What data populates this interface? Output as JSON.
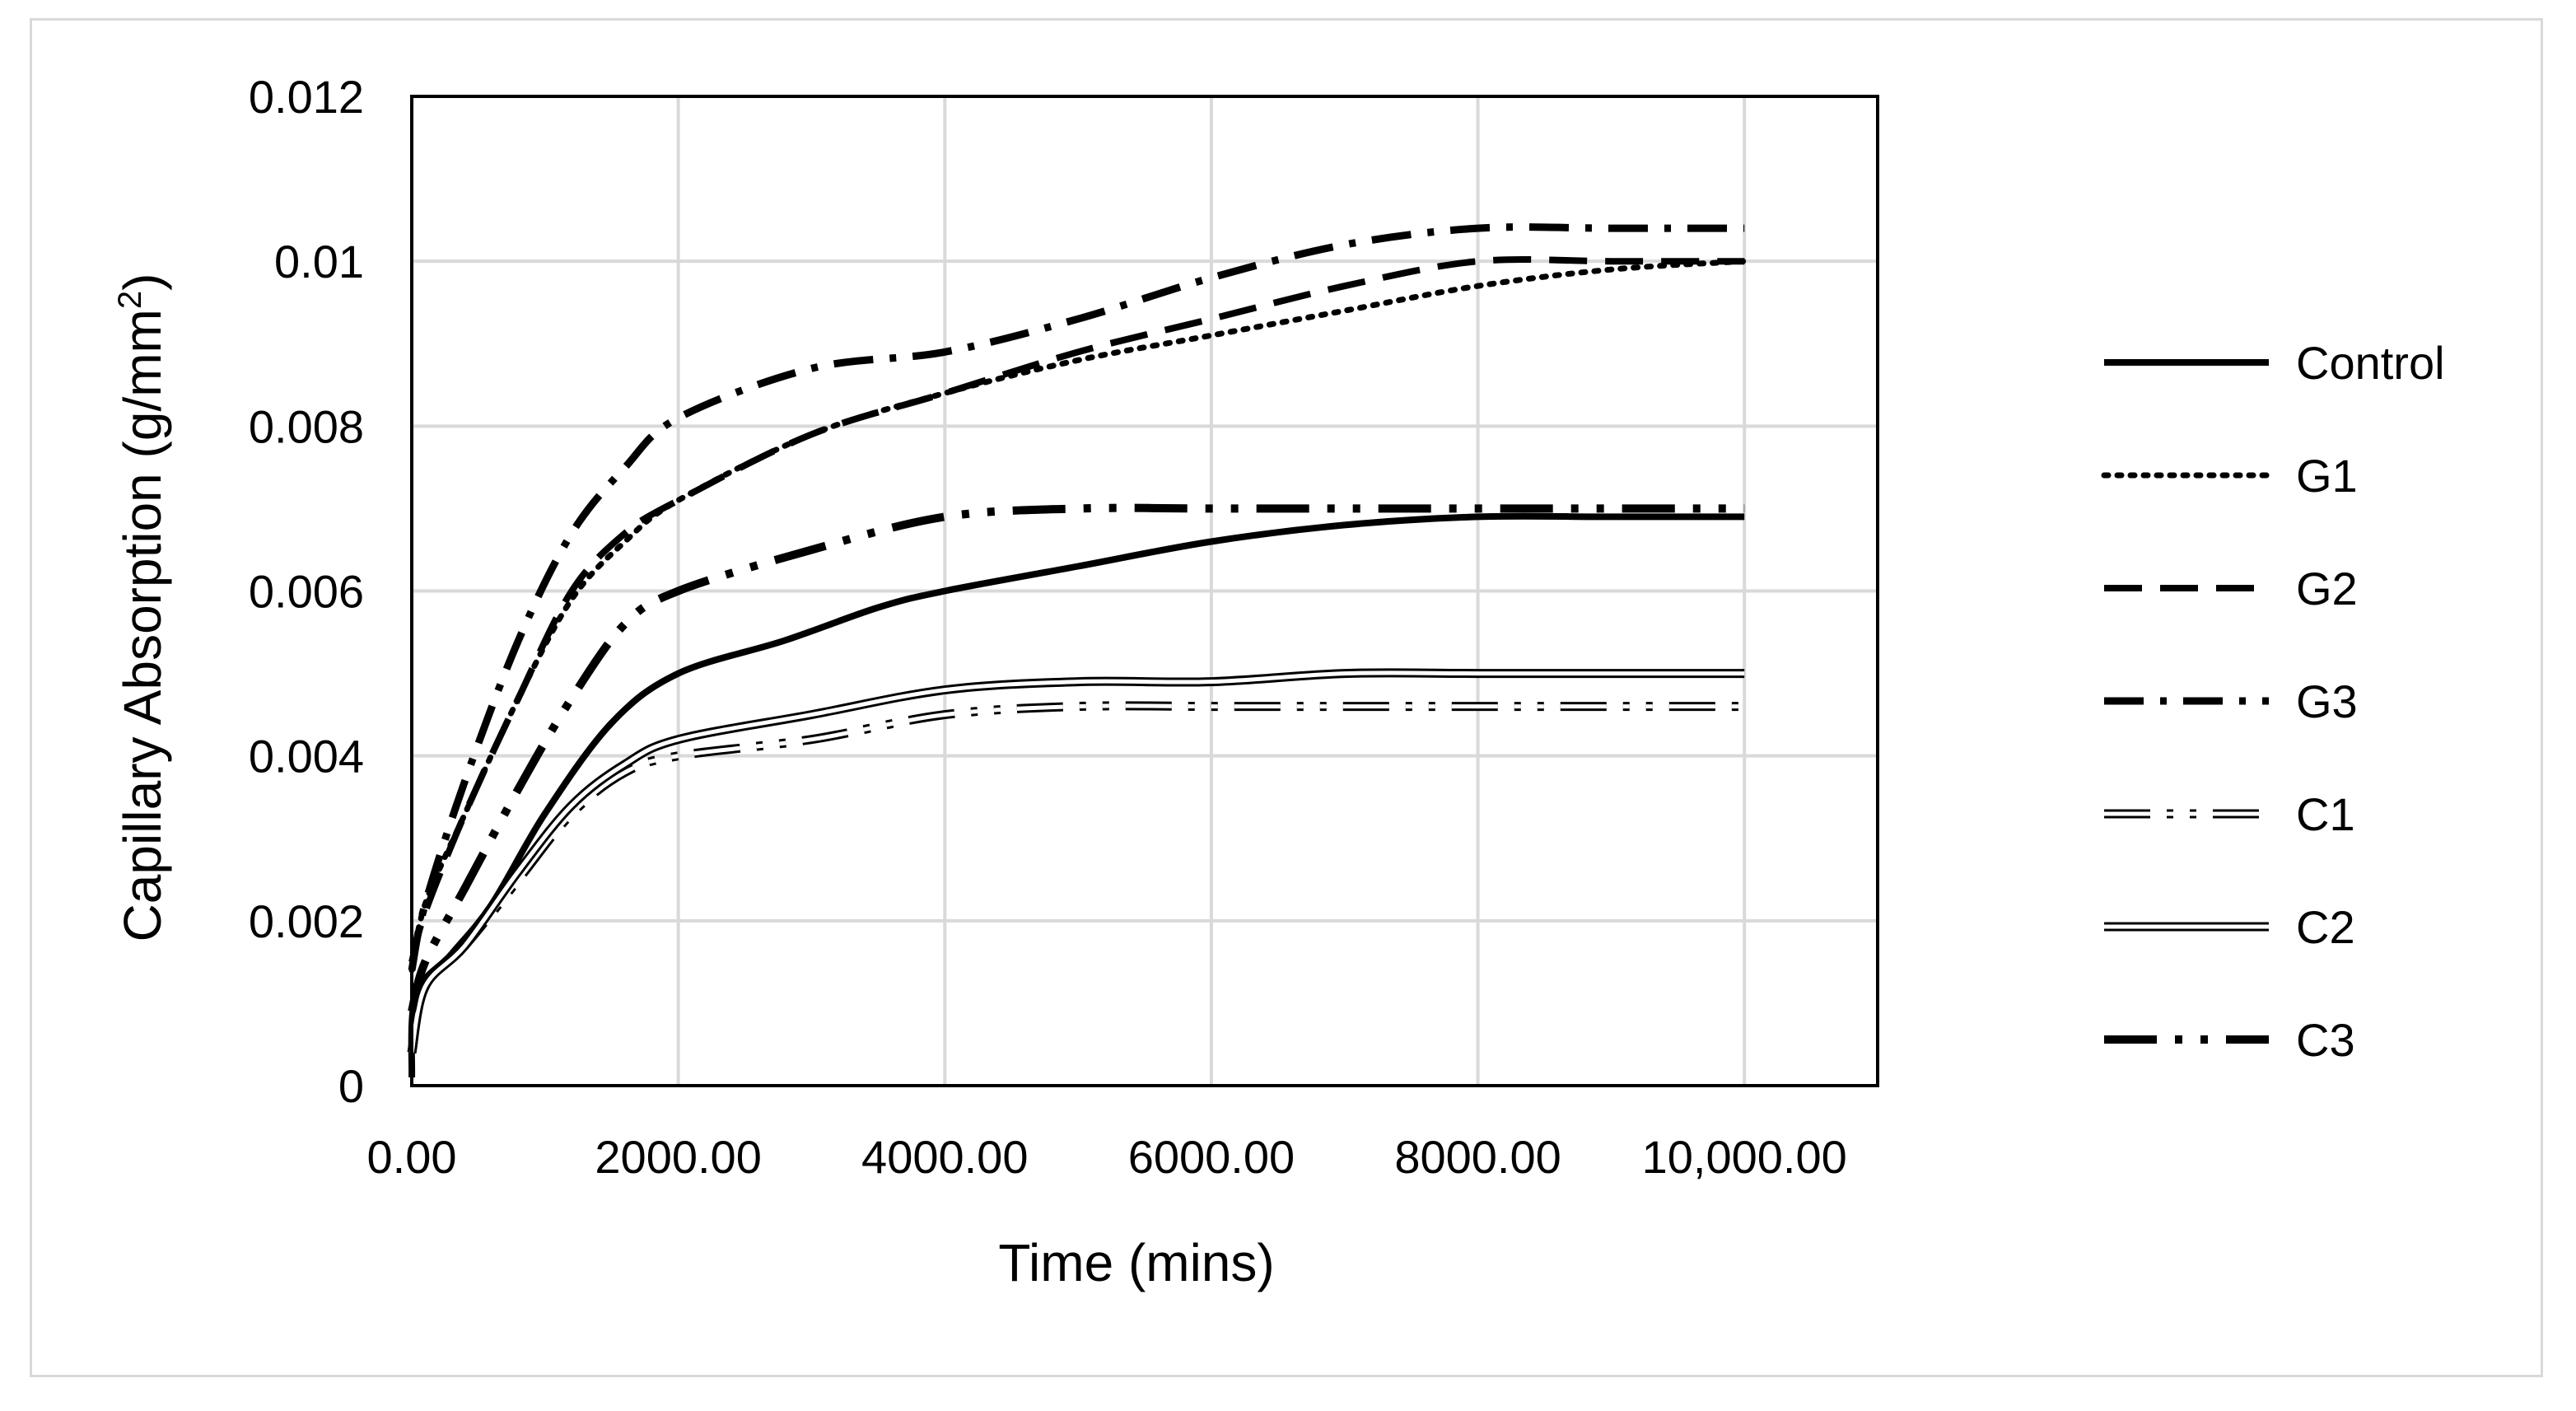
{
  "chart_data": {
    "type": "line",
    "title": "",
    "xlabel": "Time (mins)",
    "ylabel_main": "Capillary Absorption (g/mm",
    "ylabel_sup": "2",
    "ylabel_end": ")",
    "xlim": [
      0,
      11000
    ],
    "ylim": [
      0,
      0.012
    ],
    "x_ticks": [
      0,
      2000,
      4000,
      6000,
      8000,
      10000
    ],
    "x_tick_labels": [
      "0.00",
      "2000.00",
      "4000.00",
      "6000.00",
      "8000.00",
      "10,000.00"
    ],
    "y_ticks": [
      0,
      0.002,
      0.004,
      0.006,
      0.008,
      0.01,
      0.012
    ],
    "y_tick_labels": [
      "0",
      "0.002",
      "0.004",
      "0.006",
      "0.008",
      "0.01",
      "0.012"
    ],
    "grid": true,
    "legend_position": "right",
    "series": [
      {
        "name": "Control",
        "style": "solid-thick",
        "color": "#000000",
        "points": [
          [
            0,
            0.0001
          ],
          [
            30,
            0.0011
          ],
          [
            300,
            0.0016
          ],
          [
            600,
            0.0022
          ],
          [
            1000,
            0.0033
          ],
          [
            1500,
            0.0044
          ],
          [
            2000,
            0.005
          ],
          [
            2800,
            0.0054
          ],
          [
            3500,
            0.0058
          ],
          [
            4000,
            0.006
          ],
          [
            5000,
            0.0063
          ],
          [
            6000,
            0.0066
          ],
          [
            7000,
            0.0068
          ],
          [
            8000,
            0.0069
          ],
          [
            9000,
            0.0069
          ],
          [
            10000,
            0.0069
          ]
        ]
      },
      {
        "name": "G1",
        "style": "dotted",
        "color": "#000000",
        "points": [
          [
            0,
            0.0014
          ],
          [
            100,
            0.0022
          ],
          [
            400,
            0.0033
          ],
          [
            800,
            0.0047
          ],
          [
            1200,
            0.0059
          ],
          [
            1600,
            0.0066
          ],
          [
            2000,
            0.0071
          ],
          [
            3000,
            0.0079
          ],
          [
            4000,
            0.0084
          ],
          [
            5000,
            0.0088
          ],
          [
            6000,
            0.0091
          ],
          [
            7000,
            0.0094
          ],
          [
            8000,
            0.0097
          ],
          [
            9000,
            0.0099
          ],
          [
            10000,
            0.01
          ]
        ]
      },
      {
        "name": "G2",
        "style": "dashed",
        "color": "#000000",
        "points": [
          [
            0,
            0.0015
          ],
          [
            100,
            0.0021
          ],
          [
            400,
            0.0033
          ],
          [
            800,
            0.0047
          ],
          [
            1200,
            0.006
          ],
          [
            1600,
            0.0067
          ],
          [
            2000,
            0.0071
          ],
          [
            3000,
            0.0079
          ],
          [
            4000,
            0.0084
          ],
          [
            5000,
            0.0089
          ],
          [
            6000,
            0.0093
          ],
          [
            7000,
            0.0097
          ],
          [
            8000,
            0.01
          ],
          [
            9000,
            0.01
          ],
          [
            10000,
            0.01
          ]
        ]
      },
      {
        "name": "G3",
        "style": "dash-dot",
        "color": "#000000",
        "points": [
          [
            0,
            0.0014
          ],
          [
            100,
            0.0022
          ],
          [
            400,
            0.0037
          ],
          [
            800,
            0.0054
          ],
          [
            1200,
            0.0067
          ],
          [
            1600,
            0.0075
          ],
          [
            2000,
            0.0081
          ],
          [
            3000,
            0.0087
          ],
          [
            4000,
            0.0089
          ],
          [
            5000,
            0.0093
          ],
          [
            6000,
            0.0098
          ],
          [
            7000,
            0.0102
          ],
          [
            8000,
            0.0104
          ],
          [
            9000,
            0.0104
          ],
          [
            10000,
            0.0104
          ]
        ]
      },
      {
        "name": "C1",
        "style": "double-dash-dot-dot",
        "color": "#000000",
        "points": [
          [
            0,
            0.0004
          ],
          [
            100,
            0.0012
          ],
          [
            400,
            0.0017
          ],
          [
            800,
            0.0025
          ],
          [
            1200,
            0.0033
          ],
          [
            1600,
            0.0038
          ],
          [
            2000,
            0.004
          ],
          [
            3000,
            0.0042
          ],
          [
            4000,
            0.0045
          ],
          [
            5000,
            0.0046
          ],
          [
            6000,
            0.0046
          ],
          [
            7000,
            0.0046
          ],
          [
            8000,
            0.0046
          ],
          [
            9000,
            0.0046
          ],
          [
            10000,
            0.0046
          ]
        ]
      },
      {
        "name": "C2",
        "style": "double-solid",
        "color": "#000000",
        "points": [
          [
            0,
            0.0004
          ],
          [
            100,
            0.0012
          ],
          [
            400,
            0.0017
          ],
          [
            800,
            0.0026
          ],
          [
            1200,
            0.0034
          ],
          [
            1600,
            0.0039
          ],
          [
            2000,
            0.0042
          ],
          [
            3000,
            0.0045
          ],
          [
            4000,
            0.0048
          ],
          [
            5000,
            0.0049
          ],
          [
            6000,
            0.0049
          ],
          [
            7000,
            0.005
          ],
          [
            8000,
            0.005
          ],
          [
            9000,
            0.005
          ],
          [
            10000,
            0.005
          ]
        ]
      },
      {
        "name": "C3",
        "style": "longdash-dot-dot",
        "color": "#000000",
        "points": [
          [
            0,
            0.0009
          ],
          [
            100,
            0.0015
          ],
          [
            400,
            0.0024
          ],
          [
            800,
            0.0036
          ],
          [
            1200,
            0.0047
          ],
          [
            1600,
            0.0056
          ],
          [
            2000,
            0.006
          ],
          [
            3000,
            0.0065
          ],
          [
            4000,
            0.0069
          ],
          [
            5000,
            0.007
          ],
          [
            6000,
            0.007
          ],
          [
            7000,
            0.007
          ],
          [
            8000,
            0.007
          ],
          [
            9000,
            0.007
          ],
          [
            10000,
            0.007
          ]
        ]
      }
    ]
  }
}
